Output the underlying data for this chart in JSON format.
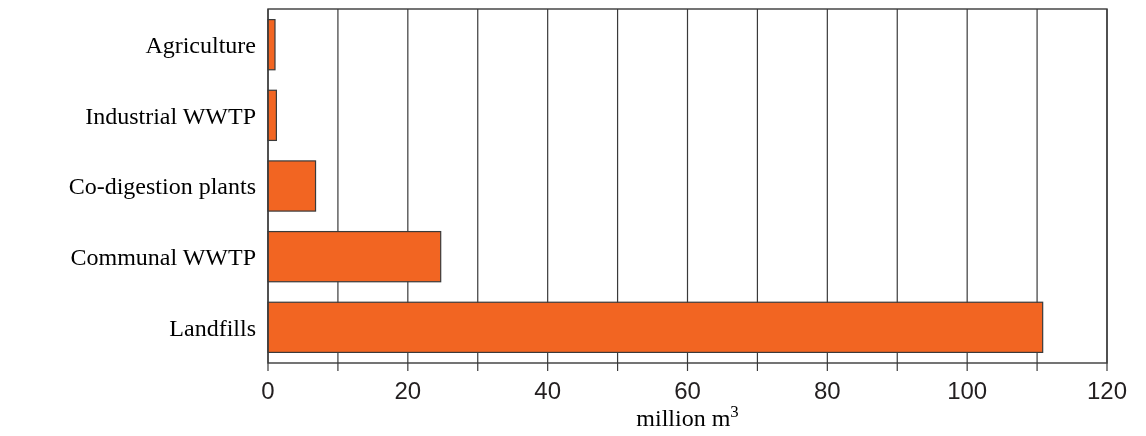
{
  "chart_data": {
    "type": "bar",
    "orientation": "horizontal",
    "xlabel": "million m$^{3}$",
    "categories": [
      "Agriculture",
      "Industrial WWTP",
      "Co-digestion plants",
      "Communal WWTP",
      "Landfills"
    ],
    "values": [
      1.0,
      1.2,
      6.8,
      24.7,
      110.8
    ],
    "color": "#f26522",
    "xlim": [
      0,
      120
    ],
    "xticks": [
      0,
      {
        "value": 10,
        "label": null
      },
      20,
      {
        "value": 30,
        "label": null
      },
      40,
      {
        "value": 50,
        "label": null
      },
      60,
      {
        "value": 70,
        "label": null
      },
      80,
      {
        "value": 90,
        "label": null
      },
      100,
      {
        "value": 110,
        "label": null
      },
      120
    ],
    "grid": "x"
  }
}
